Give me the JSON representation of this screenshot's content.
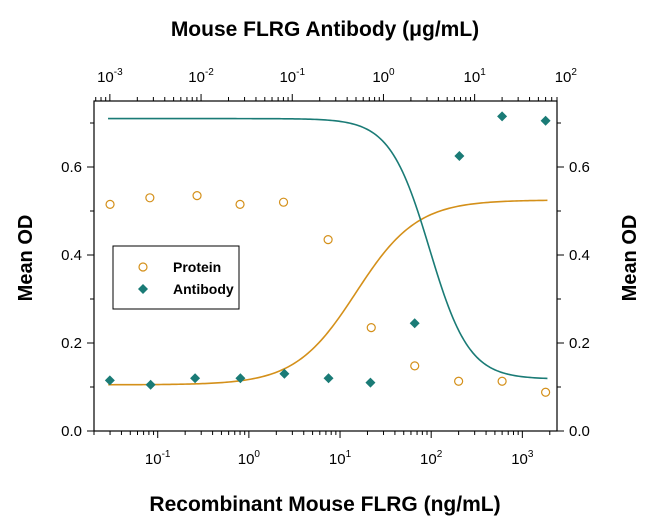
{
  "chart_data": {
    "type": "scatter",
    "title_top": "Mouse FLRG Antibody (μg/mL)",
    "xlabel": "Recombinant Mouse FLRG (ng/mL)",
    "ylabel_left": "Mean OD",
    "ylabel_right": "Mean OD",
    "x_scale": "log",
    "x_range": [
      0.02,
      2400
    ],
    "x_top_scale": "log",
    "x_top_range": [
      0.00067,
      80
    ],
    "ylim": [
      0,
      0.75
    ],
    "grid": false,
    "legend_position": "middle-left",
    "x_bottom_ticks": [
      {
        "value": 0.1,
        "base": "10",
        "exp": "-1"
      },
      {
        "value": 1,
        "base": "10",
        "exp": "0"
      },
      {
        "value": 10,
        "base": "10",
        "exp": "1"
      },
      {
        "value": 100,
        "base": "10",
        "exp": "2"
      },
      {
        "value": 1000,
        "base": "10",
        "exp": "3"
      }
    ],
    "x_top_ticks": [
      {
        "value": 0.001,
        "base": "10",
        "exp": "-3"
      },
      {
        "value": 0.01,
        "base": "10",
        "exp": "-2"
      },
      {
        "value": 0.1,
        "base": "10",
        "exp": "-1"
      },
      {
        "value": 1,
        "base": "10",
        "exp": "0"
      },
      {
        "value": 10,
        "base": "10",
        "exp": "1"
      },
      {
        "value": 100,
        "base": "10",
        "exp": "2"
      }
    ],
    "y_ticks": [
      {
        "value": 0.0,
        "label": "0.0"
      },
      {
        "value": 0.2,
        "label": "0.2"
      },
      {
        "value": 0.4,
        "label": "0.4"
      },
      {
        "value": 0.6,
        "label": "0.6"
      }
    ],
    "series": [
      {
        "name": "Protein",
        "axis": "bottom",
        "marker": "open-circle",
        "color": "#d4901a",
        "x": [
          0.03,
          0.082,
          0.27,
          0.8,
          2.4,
          7.4,
          22,
          66,
          200,
          600,
          1800
        ],
        "y": [
          0.515,
          0.53,
          0.535,
          0.515,
          0.52,
          0.435,
          0.235,
          0.148,
          0.113,
          0.113,
          0.088
        ],
        "fit": {
          "top": 0.525,
          "bottom": 0.105,
          "ec50": 15,
          "hill": -1.3
        }
      },
      {
        "name": "Antibody",
        "axis": "top",
        "marker": "filled-diamond",
        "color": "#1a7b76",
        "x": [
          0.001,
          0.0028,
          0.0086,
          0.027,
          0.082,
          0.25,
          0.72,
          2.2,
          6.8,
          20,
          60
        ],
        "y": [
          0.115,
          0.105,
          0.12,
          0.12,
          0.13,
          0.12,
          0.11,
          0.245,
          0.625,
          0.715,
          0.705
        ],
        "fit": {
          "top": 0.71,
          "bottom": 0.118,
          "ec50": 3.2,
          "hill": 2.0
        }
      }
    ]
  }
}
